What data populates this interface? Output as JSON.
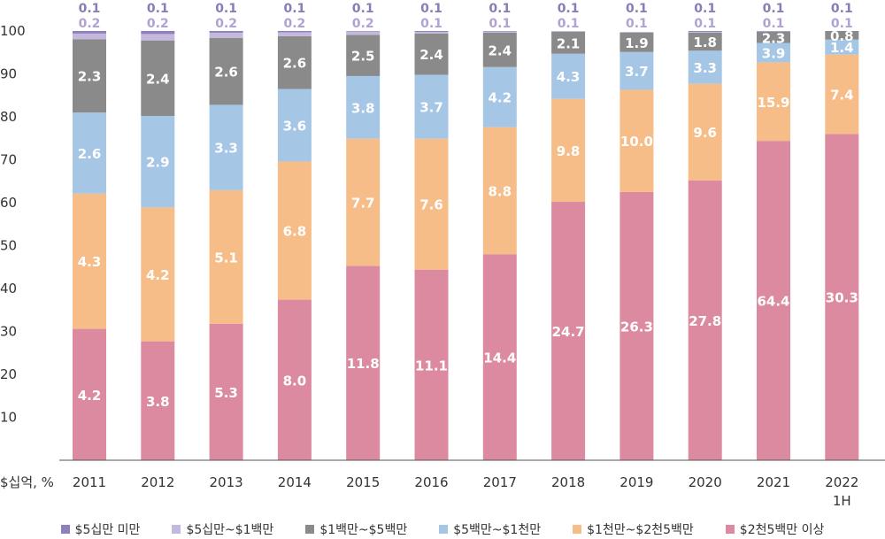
{
  "chart_data": {
    "type": "bar",
    "stacked": true,
    "y_unit_label": "$십억, %",
    "ylim": [
      0,
      100
    ],
    "yticks": [
      "10",
      "20",
      "30",
      "40",
      "50",
      "60",
      "70",
      "80",
      "90",
      "100"
    ],
    "categories": [
      "2011",
      "2012",
      "2013",
      "2014",
      "2015",
      "2016",
      "2017",
      "2018",
      "2019",
      "2020",
      "2021",
      "2022 1H"
    ],
    "category_lines": [
      [
        "2011"
      ],
      [
        "2012"
      ],
      [
        "2013"
      ],
      [
        "2014"
      ],
      [
        "2015"
      ],
      [
        "2016"
      ],
      [
        "2017"
      ],
      [
        "2018"
      ],
      [
        "2019"
      ],
      [
        "2020"
      ],
      [
        "2021"
      ],
      [
        "2022",
        "1H"
      ]
    ],
    "legend_position": "bottom",
    "series": [
      {
        "name": "$2천5백만 이상",
        "color": "#dc8aa0",
        "label_color": "#ffffff",
        "share_pct": [
          30.6,
          27.7,
          31.8,
          37.4,
          45.3,
          44.4,
          48.0,
          60.2,
          62.5,
          65.2,
          74.4,
          76.0
        ],
        "labels": [
          "4.2",
          "3.8",
          "5.3",
          "8.0",
          "11.8",
          "11.1",
          "14.4",
          "24.7",
          "26.3",
          "27.8",
          "64.4",
          "30.3"
        ]
      },
      {
        "name": "$1천만~$2천5백만",
        "color": "#f6bd88",
        "label_color": "#ffffff",
        "share_pct": [
          31.5,
          31.2,
          31.1,
          32.2,
          29.6,
          30.5,
          29.6,
          24.0,
          23.8,
          22.5,
          18.3,
          18.5
        ],
        "labels": [
          "4.3",
          "4.2",
          "5.1",
          "6.8",
          "7.7",
          "7.6",
          "8.8",
          "9.8",
          "10.0",
          "9.6",
          "15.9",
          "7.4"
        ]
      },
      {
        "name": "$5백만~$1천만",
        "color": "#a6c6e6",
        "label_color": "#ffffff",
        "share_pct": [
          18.9,
          21.3,
          19.9,
          16.9,
          14.6,
          14.9,
          14.0,
          10.5,
          8.8,
          7.7,
          4.5,
          3.5
        ],
        "labels": [
          "2.6",
          "2.9",
          "3.3",
          "3.6",
          "3.8",
          "3.7",
          "4.2",
          "4.3",
          "3.7",
          "3.3",
          "3.9",
          "1.4"
        ]
      },
      {
        "name": "$1백만~$5백만",
        "color": "#8a8a8a",
        "label_color": "#ffffff",
        "share_pct": [
          17.1,
          17.6,
          15.6,
          12.3,
          9.6,
          9.6,
          8.0,
          5.1,
          4.5,
          4.2,
          2.6,
          2.0
        ],
        "labels": [
          "2.3",
          "2.4",
          "2.6",
          "2.6",
          "2.5",
          "2.4",
          "2.4",
          "2.1",
          "1.9",
          "1.8",
          "2.3",
          "0.8"
        ]
      },
      {
        "name": "$5십만~$1백만",
        "color": "#c5b8dd",
        "label_color": "#b1a2d3",
        "share_pct": [
          1.3,
          1.5,
          1.2,
          0.9,
          0.8,
          0.4,
          0.3,
          0.2,
          0.2,
          0.2,
          0.1,
          0.0
        ],
        "labels": [
          "0.2",
          "0.2",
          "0.2",
          "0.2",
          "0.2",
          "0.1",
          "0.1",
          "0.1",
          "0.1",
          "0.1",
          "0.1",
          "0.1"
        ]
      },
      {
        "name": "$5십만 미만",
        "color": "#8f7fbd",
        "label_color": "#8a7bb9",
        "share_pct": [
          0.6,
          0.7,
          0.4,
          0.3,
          0.1,
          0.2,
          0.1,
          0.0,
          0.0,
          0.2,
          0.1,
          0.0
        ],
        "labels": [
          "0.1",
          "0.1",
          "0.1",
          "0.1",
          "0.1",
          "0.1",
          "0.1",
          "0.1",
          "0.1",
          "0.1",
          "0.1",
          "0.1"
        ]
      }
    ],
    "legend_order": [
      5,
      4,
      3,
      2,
      1,
      0
    ]
  }
}
